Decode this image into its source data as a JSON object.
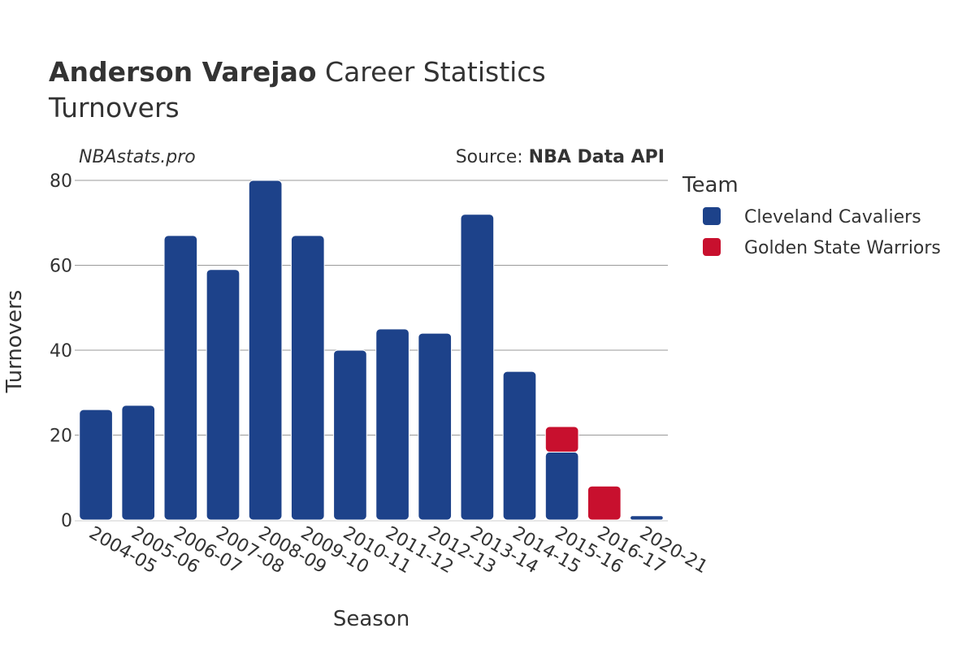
{
  "title": {
    "bold": "Anderson Varejao",
    "rest": " Career Statistics"
  },
  "subtitle": "Turnovers",
  "credit_left": "NBAstats.pro",
  "credit_right": {
    "prefix": "Source: ",
    "bold": "NBA Data API"
  },
  "legend": {
    "title": "Team"
  },
  "chart_data": {
    "type": "bar",
    "stacked": true,
    "xlabel": "Season",
    "ylabel": "Turnovers",
    "ylim": [
      0,
      80
    ],
    "yticks": [
      0,
      20,
      40,
      60,
      80
    ],
    "grid": true,
    "legend_position": "right",
    "categories": [
      "2004-05",
      "2005-06",
      "2006-07",
      "2007-08",
      "2008-09",
      "2009-10",
      "2010-11",
      "2011-12",
      "2012-13",
      "2013-14",
      "2014-15",
      "2015-16",
      "2016-17",
      "2020-21"
    ],
    "series": [
      {
        "name": "Cleveland Cavaliers",
        "color": "#1d428a",
        "values": [
          26,
          27,
          67,
          59,
          80,
          67,
          40,
          45,
          44,
          72,
          35,
          16,
          0,
          1
        ]
      },
      {
        "name": "Golden State Warriors",
        "color": "#c8102e",
        "values": [
          0,
          0,
          0,
          0,
          0,
          0,
          0,
          0,
          0,
          0,
          0,
          6,
          8,
          0
        ]
      }
    ]
  }
}
